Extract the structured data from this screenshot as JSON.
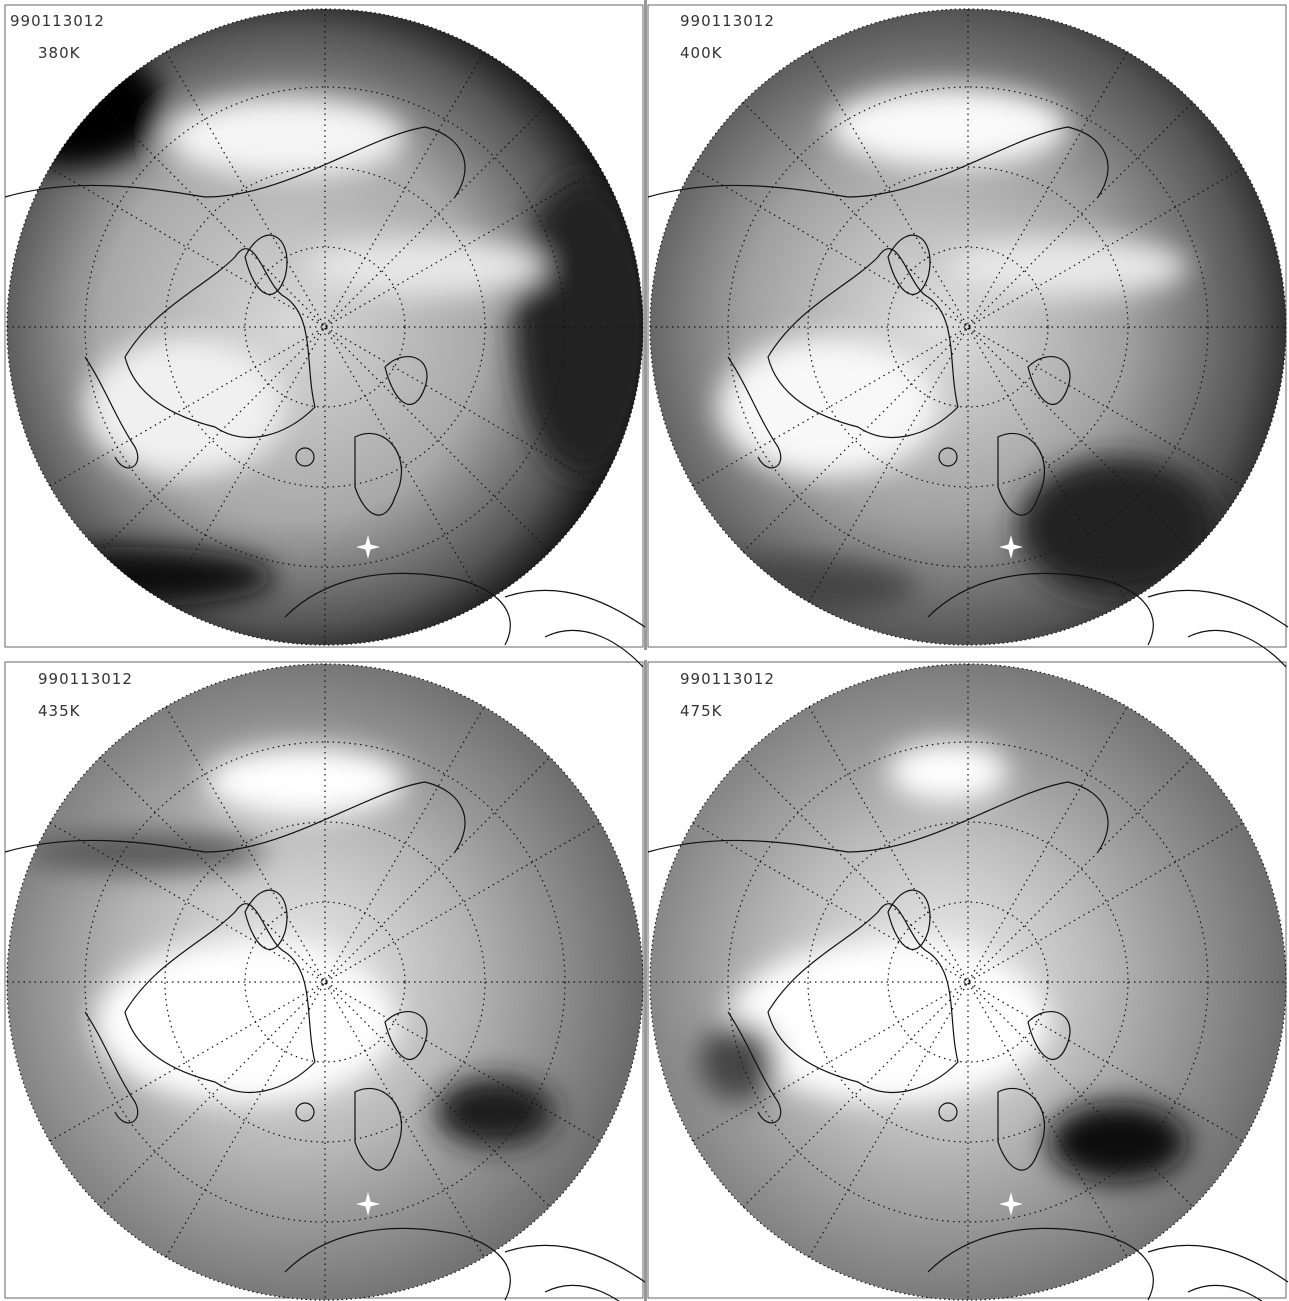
{
  "panels": [
    {
      "date": "990113012",
      "level": "380K"
    },
    {
      "date": "990113012",
      "level": "400K"
    },
    {
      "date": "990113012",
      "level": "435K"
    },
    {
      "date": "990113012",
      "level": "475K"
    }
  ]
}
